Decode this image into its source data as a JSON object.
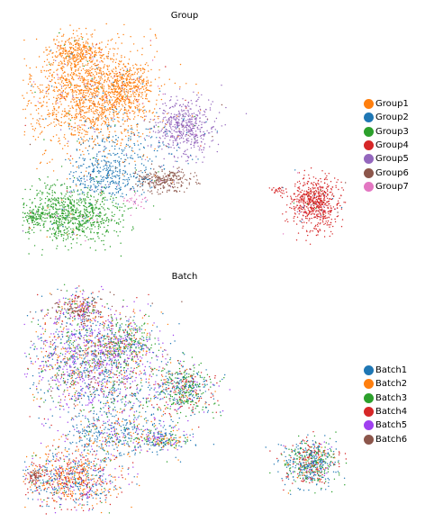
{
  "chart_data": [
    {
      "type": "scatter",
      "title": "Group",
      "xlabel": "",
      "ylabel": "",
      "legend_position": "right",
      "grid": false,
      "series": [
        {
          "name": "Group1",
          "color": "#ff7f0e"
        },
        {
          "name": "Group2",
          "color": "#1f77b4"
        },
        {
          "name": "Group3",
          "color": "#2ca02c"
        },
        {
          "name": "Group4",
          "color": "#d62728"
        },
        {
          "name": "Group5",
          "color": "#9467bd"
        },
        {
          "name": "Group6",
          "color": "#8c564b"
        },
        {
          "name": "Group7",
          "color": "#e377c2"
        }
      ]
    },
    {
      "type": "scatter",
      "title": "Batch",
      "xlabel": "",
      "ylabel": "",
      "legend_position": "right",
      "grid": false,
      "series": [
        {
          "name": "Batch1",
          "color": "#1f77b4"
        },
        {
          "name": "Batch2",
          "color": "#ff7f0e"
        },
        {
          "name": "Batch3",
          "color": "#2ca02c"
        },
        {
          "name": "Batch4",
          "color": "#d62728"
        },
        {
          "name": "Batch5",
          "color": "#a040f0"
        },
        {
          "name": "Batch6",
          "color": "#8c564b"
        }
      ]
    }
  ]
}
